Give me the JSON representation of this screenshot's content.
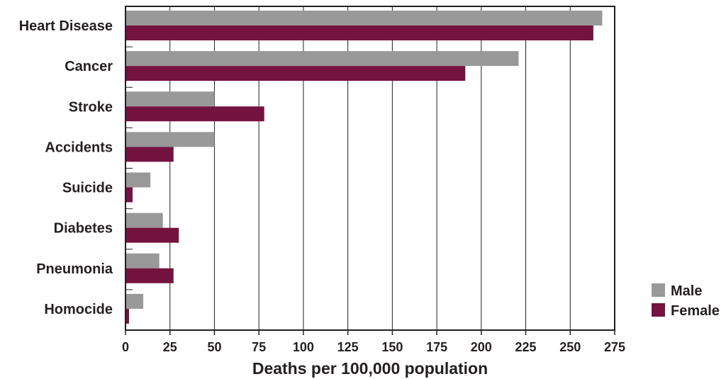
{
  "chart_data": {
    "type": "bar",
    "orientation": "horizontal",
    "categories": [
      "Heart Disease",
      "Cancer",
      "Stroke",
      "Accidents",
      "Suicide",
      "Diabetes",
      "Pneumonia",
      "Homocide"
    ],
    "series": [
      {
        "name": "Male",
        "color": "#999999",
        "values": [
          268,
          221,
          50,
          50,
          14,
          21,
          19,
          10
        ]
      },
      {
        "name": "Female",
        "color": "#741240",
        "values": [
          263,
          191,
          78,
          27,
          4,
          30,
          27,
          2
        ]
      }
    ],
    "xlabel": "Deaths per 100,000 population",
    "ylabel": "",
    "xlim": [
      0,
      275
    ],
    "xticks": [
      0,
      25,
      50,
      75,
      100,
      125,
      150,
      175,
      200,
      225,
      250,
      275
    ],
    "grid": true,
    "legend_position": "bottom-right"
  }
}
